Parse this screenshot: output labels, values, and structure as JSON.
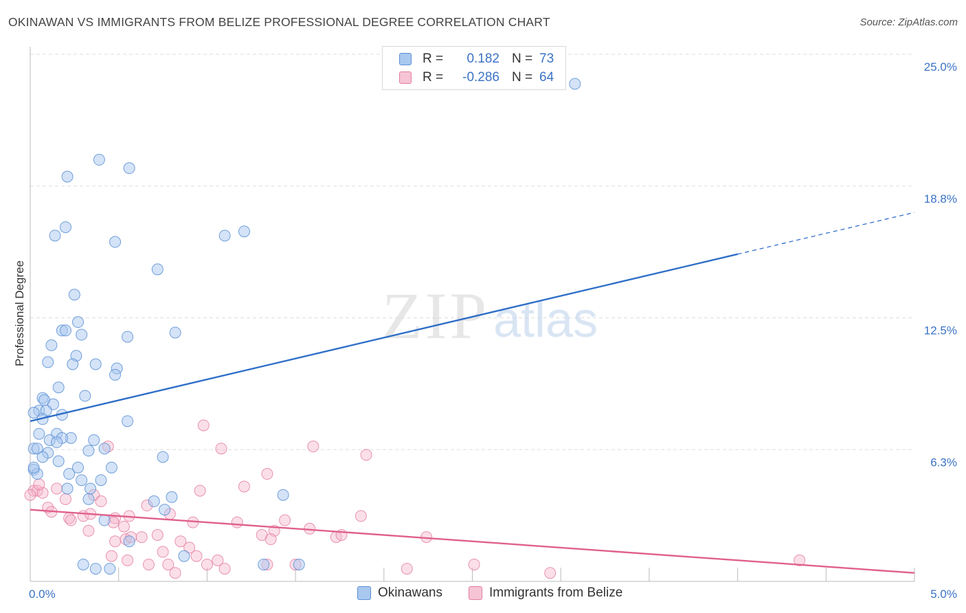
{
  "title": "OKINAWAN VS IMMIGRANTS FROM BELIZE PROFESSIONAL DEGREE CORRELATION CHART",
  "source": "Source: ZipAtlas.com",
  "watermark": {
    "zip": "ZIP",
    "atlas": "atlas"
  },
  "legend": {
    "rows": [
      {
        "r_label": "R =",
        "r_value": "0.182",
        "n_label": "N =",
        "n_value": "73"
      },
      {
        "r_label": "R =",
        "r_value": "-0.286",
        "n_label": "N =",
        "n_value": "64"
      }
    ]
  },
  "bottom_legend": {
    "series1": "Okinawans",
    "series2": "Immigrants from Belize"
  },
  "colors": {
    "blue_fill": "#a9c8ef",
    "blue_stroke": "#5b8fd4",
    "blue_line": "#2f6fc8",
    "pink_fill": "#f6b8cc",
    "pink_stroke": "#e27b9d",
    "pink_line": "#e0608d",
    "grid": "#dddddd",
    "tick_text": "#3b73c4"
  },
  "chart_data": {
    "type": "scatter",
    "title": "OKINAWAN VS IMMIGRANTS FROM BELIZE PROFESSIONAL DEGREE CORRELATION CHART",
    "xlabel": "",
    "ylabel": "Professional Degree",
    "xlim": [
      0,
      5
    ],
    "ylim": [
      0,
      25
    ],
    "x_tick_labels": [
      {
        "value": 0,
        "label": "0.0%"
      },
      {
        "value": 5,
        "label": "5.0%"
      }
    ],
    "y_tick_labels": [
      {
        "value": 25,
        "label": "25.0%"
      },
      {
        "value": 18.75,
        "label": "18.8%"
      },
      {
        "value": 12.5,
        "label": "12.5%"
      },
      {
        "value": 6.25,
        "label": "6.3%"
      }
    ],
    "y_gridlines": [
      6.25,
      12.5,
      18.75,
      25
    ],
    "series": [
      {
        "name": "Okinawans",
        "r": 0.182,
        "n": 73,
        "trend": {
          "x0": 0,
          "y0": 7.6,
          "x1": 5,
          "y1": 17.5,
          "solid_until_x": 4.0
        },
        "points": [
          [
            3.08,
            23.6
          ],
          [
            0.39,
            20.0
          ],
          [
            0.56,
            19.6
          ],
          [
            0.21,
            19.2
          ],
          [
            0.2,
            16.8
          ],
          [
            0.14,
            16.4
          ],
          [
            1.1,
            16.4
          ],
          [
            1.21,
            16.6
          ],
          [
            0.48,
            16.1
          ],
          [
            0.72,
            14.8
          ],
          [
            0.25,
            13.6
          ],
          [
            0.27,
            12.3
          ],
          [
            0.18,
            11.9
          ],
          [
            0.2,
            11.9
          ],
          [
            0.29,
            11.7
          ],
          [
            0.55,
            11.6
          ],
          [
            0.82,
            11.8
          ],
          [
            0.12,
            11.2
          ],
          [
            0.26,
            10.7
          ],
          [
            0.1,
            10.4
          ],
          [
            0.24,
            10.3
          ],
          [
            0.37,
            10.3
          ],
          [
            0.49,
            10.1
          ],
          [
            0.48,
            9.8
          ],
          [
            0.16,
            9.2
          ],
          [
            0.31,
            8.8
          ],
          [
            0.07,
            8.7
          ],
          [
            0.08,
            8.6
          ],
          [
            0.13,
            8.4
          ],
          [
            0.05,
            8.1
          ],
          [
            0.09,
            8.1
          ],
          [
            0.18,
            7.9
          ],
          [
            0.02,
            8.0
          ],
          [
            0.07,
            7.7
          ],
          [
            0.55,
            7.6
          ],
          [
            0.05,
            7.0
          ],
          [
            0.15,
            7.0
          ],
          [
            0.23,
            6.8
          ],
          [
            0.18,
            6.8
          ],
          [
            0.11,
            6.7
          ],
          [
            0.15,
            6.6
          ],
          [
            0.36,
            6.7
          ],
          [
            0.02,
            6.3
          ],
          [
            0.04,
            6.3
          ],
          [
            0.1,
            6.1
          ],
          [
            0.42,
            6.3
          ],
          [
            0.33,
            6.2
          ],
          [
            0.07,
            5.9
          ],
          [
            0.75,
            5.9
          ],
          [
            0.16,
            5.7
          ],
          [
            0.27,
            5.4
          ],
          [
            0.46,
            5.4
          ],
          [
            0.02,
            5.3
          ],
          [
            0.04,
            5.1
          ],
          [
            0.22,
            5.1
          ],
          [
            0.29,
            4.8
          ],
          [
            0.4,
            4.8
          ],
          [
            0.21,
            4.4
          ],
          [
            0.34,
            4.4
          ],
          [
            1.43,
            4.1
          ],
          [
            0.33,
            3.9
          ],
          [
            0.7,
            3.8
          ],
          [
            0.8,
            4.0
          ],
          [
            0.76,
            3.4
          ],
          [
            0.42,
            2.9
          ],
          [
            0.56,
            1.9
          ],
          [
            0.87,
            1.2
          ],
          [
            0.3,
            0.8
          ],
          [
            0.37,
            0.6
          ],
          [
            0.45,
            0.6
          ],
          [
            1.32,
            0.8
          ],
          [
            1.52,
            0.8
          ],
          [
            0.02,
            5.4
          ]
        ]
      },
      {
        "name": "Immigrants from Belize",
        "r": -0.286,
        "n": 64,
        "trend": {
          "x0": 0,
          "y0": 3.4,
          "x1": 5,
          "y1": 0.4
        },
        "points": [
          [
            0.98,
            7.4
          ],
          [
            1.08,
            6.3
          ],
          [
            1.6,
            6.4
          ],
          [
            1.9,
            6.0
          ],
          [
            0.44,
            6.4
          ],
          [
            1.34,
            5.1
          ],
          [
            1.21,
            4.5
          ],
          [
            0.96,
            4.3
          ],
          [
            0.02,
            4.3
          ],
          [
            0.04,
            4.3
          ],
          [
            0.07,
            4.2
          ],
          [
            0.15,
            4.4
          ],
          [
            0.2,
            3.9
          ],
          [
            0.36,
            4.1
          ],
          [
            0.4,
            3.8
          ],
          [
            0.1,
            3.5
          ],
          [
            0.66,
            3.6
          ],
          [
            0.12,
            3.3
          ],
          [
            0.3,
            3.1
          ],
          [
            0.34,
            3.2
          ],
          [
            0.48,
            3.0
          ],
          [
            0.56,
            3.1
          ],
          [
            0.79,
            3.2
          ],
          [
            0.22,
            3.0
          ],
          [
            0.23,
            2.9
          ],
          [
            0.47,
            2.8
          ],
          [
            0.92,
            2.8
          ],
          [
            1.17,
            2.8
          ],
          [
            1.44,
            2.9
          ],
          [
            1.87,
            3.1
          ],
          [
            0.53,
            2.6
          ],
          [
            0.33,
            2.4
          ],
          [
            1.38,
            2.4
          ],
          [
            1.58,
            2.5
          ],
          [
            0.72,
            2.2
          ],
          [
            1.31,
            2.2
          ],
          [
            0.54,
            2.0
          ],
          [
            0.57,
            2.1
          ],
          [
            0.63,
            2.1
          ],
          [
            1.73,
            2.1
          ],
          [
            1.76,
            2.2
          ],
          [
            2.24,
            2.1
          ],
          [
            1.36,
            2.0
          ],
          [
            0.48,
            1.9
          ],
          [
            0.85,
            1.9
          ],
          [
            0.9,
            1.6
          ],
          [
            0.75,
            1.4
          ],
          [
            0.46,
            1.2
          ],
          [
            0.94,
            1.2
          ],
          [
            1.06,
            1.0
          ],
          [
            1.0,
            0.8
          ],
          [
            0.67,
            0.8
          ],
          [
            0.78,
            0.8
          ],
          [
            0.55,
            1.0
          ],
          [
            1.1,
            0.6
          ],
          [
            1.5,
            0.8
          ],
          [
            2.13,
            0.6
          ],
          [
            2.51,
            0.8
          ],
          [
            2.94,
            0.4
          ],
          [
            4.35,
            1.0
          ],
          [
            0.82,
            0.4
          ],
          [
            1.34,
            0.8
          ],
          [
            0.0,
            4.1
          ],
          [
            0.05,
            4.6
          ]
        ]
      }
    ]
  }
}
